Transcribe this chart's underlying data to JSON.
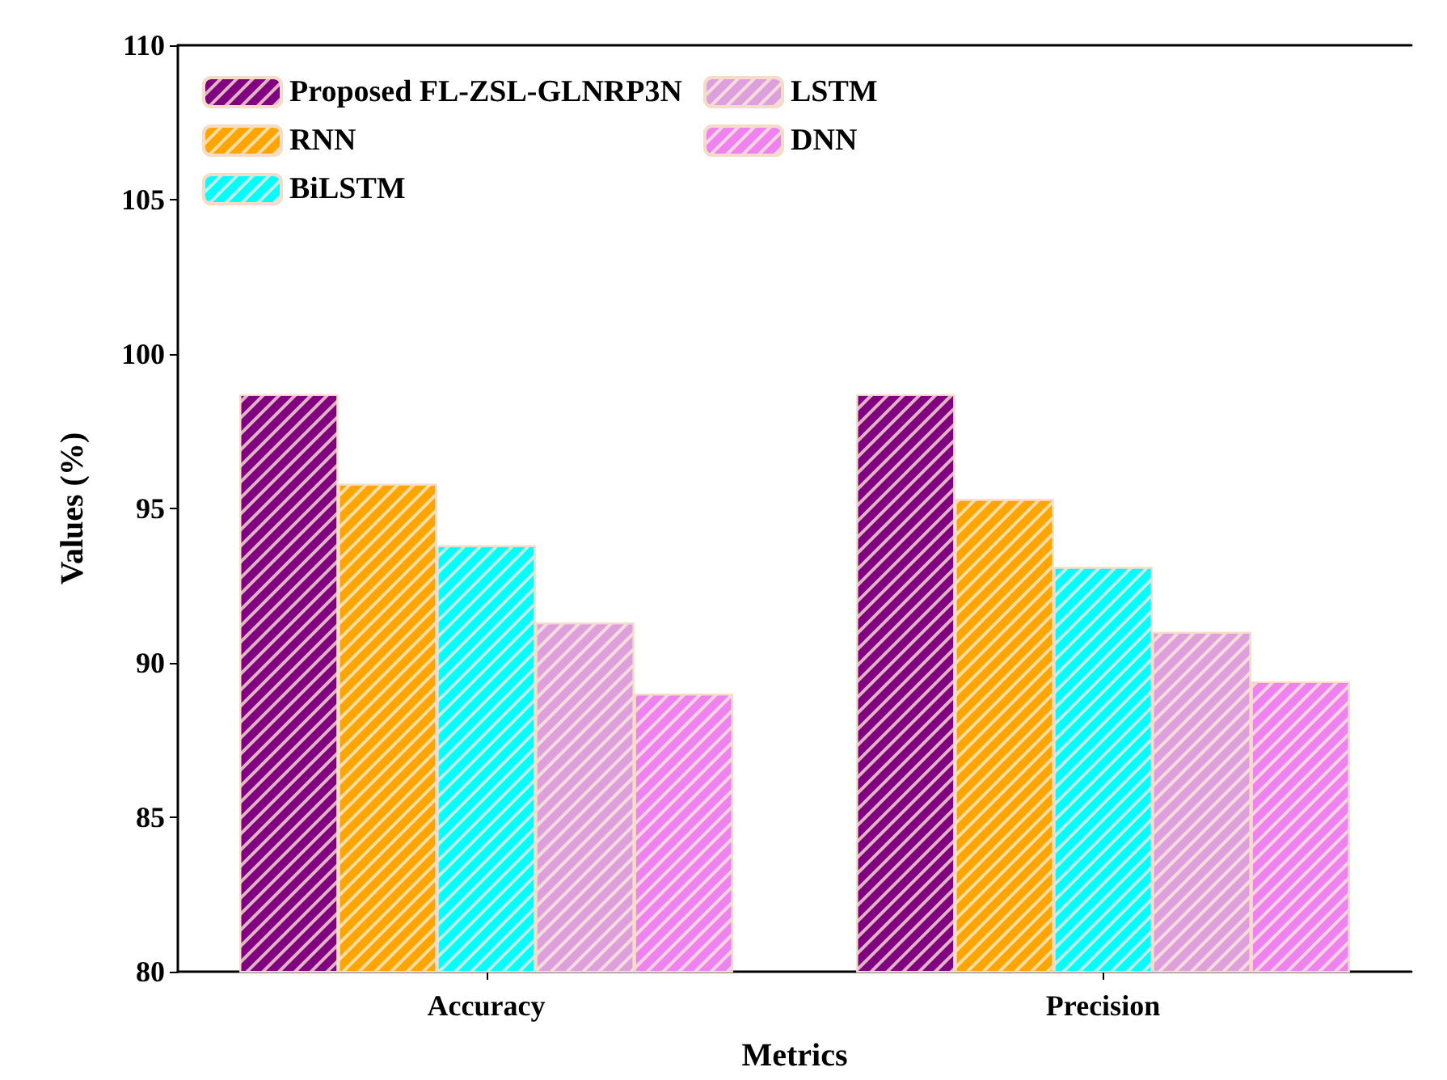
{
  "chart_data": {
    "type": "bar",
    "xlabel": "Metrics",
    "ylabel": "Values (%)",
    "categories": [
      "Accuracy",
      "Precision"
    ],
    "series": [
      {
        "name": "Proposed FL-ZSL-GLNRP3N",
        "color": "#800080",
        "values": [
          98.7,
          98.7
        ]
      },
      {
        "name": "RNN",
        "color": "#ffa500",
        "values": [
          95.8,
          95.3
        ]
      },
      {
        "name": "BiLSTM",
        "color": "#00ffff",
        "values": [
          93.8,
          93.1
        ]
      },
      {
        "name": "LSTM",
        "color": "#dda0dd",
        "values": [
          91.3,
          91.0
        ]
      },
      {
        "name": "DNN",
        "color": "#ee82ee",
        "values": [
          89.0,
          89.4
        ]
      }
    ],
    "ylim": [
      80,
      110
    ],
    "yticks": [
      80,
      85,
      90,
      95,
      100,
      105,
      110
    ],
    "grid": false,
    "legend": "top left"
  }
}
